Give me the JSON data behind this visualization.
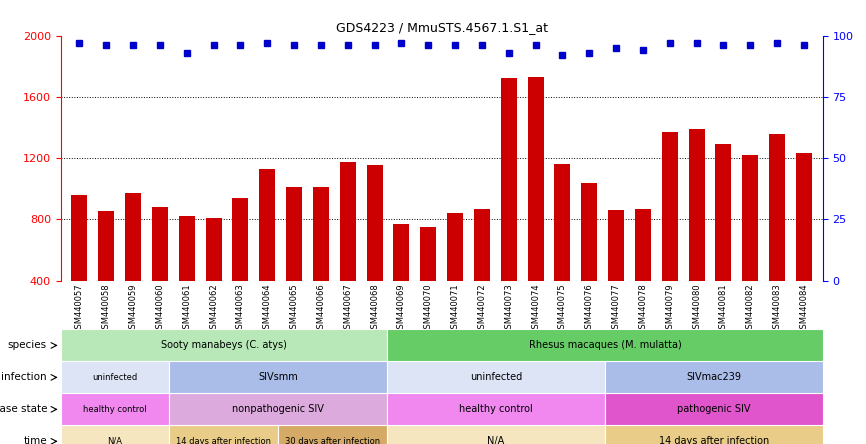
{
  "title": "GDS4223 / MmuSTS.4567.1.S1_at",
  "samples": [
    "GSM440057",
    "GSM440058",
    "GSM440059",
    "GSM440060",
    "GSM440061",
    "GSM440062",
    "GSM440063",
    "GSM440064",
    "GSM440065",
    "GSM440066",
    "GSM440067",
    "GSM440068",
    "GSM440069",
    "GSM440070",
    "GSM440071",
    "GSM440072",
    "GSM440073",
    "GSM440074",
    "GSM440075",
    "GSM440076",
    "GSM440077",
    "GSM440078",
    "GSM440079",
    "GSM440080",
    "GSM440081",
    "GSM440082",
    "GSM440083",
    "GSM440084"
  ],
  "counts": [
    960,
    855,
    975,
    880,
    820,
    810,
    940,
    1130,
    1010,
    1010,
    1175,
    1155,
    770,
    750,
    840,
    870,
    1720,
    1730,
    1160,
    1040,
    860,
    870,
    1370,
    1390,
    1290,
    1220,
    1360,
    1230
  ],
  "percentiles": [
    97,
    96,
    96,
    96,
    93,
    96,
    96,
    97,
    96,
    96,
    96,
    96,
    97,
    96,
    96,
    96,
    93,
    96,
    92,
    93,
    95,
    94,
    97,
    97,
    96,
    96,
    97,
    96
  ],
  "bar_color": "#cc0000",
  "dot_color": "#0000cc",
  "ylim_left": [
    400,
    2000
  ],
  "ylim_right": [
    0,
    100
  ],
  "yticks_left": [
    400,
    800,
    1200,
    1600,
    2000
  ],
  "yticks_right": [
    0,
    25,
    50,
    75,
    100
  ],
  "hlines": [
    800,
    1200,
    1600
  ],
  "species_regions": [
    {
      "label": "Sooty manabeys (C. atys)",
      "start": 0,
      "end": 12,
      "color": "#b8e8b8"
    },
    {
      "label": "Rhesus macaques (M. mulatta)",
      "start": 12,
      "end": 28,
      "color": "#66cc66"
    }
  ],
  "infection_regions": [
    {
      "label": "uninfected",
      "start": 0,
      "end": 4,
      "color": "#dde4f5"
    },
    {
      "label": "SIVsmm",
      "start": 4,
      "end": 12,
      "color": "#aabce8"
    },
    {
      "label": "uninfected",
      "start": 12,
      "end": 20,
      "color": "#dde4f5"
    },
    {
      "label": "SIVmac239",
      "start": 20,
      "end": 28,
      "color": "#aabce8"
    }
  ],
  "disease_regions": [
    {
      "label": "healthy control",
      "start": 0,
      "end": 4,
      "color": "#f088f0"
    },
    {
      "label": "nonpathogenic SIV",
      "start": 4,
      "end": 12,
      "color": "#ddaadd"
    },
    {
      "label": "healthy control",
      "start": 12,
      "end": 20,
      "color": "#f088f0"
    },
    {
      "label": "pathogenic SIV",
      "start": 20,
      "end": 28,
      "color": "#e055cc"
    }
  ],
  "time_regions": [
    {
      "label": "N/A",
      "start": 0,
      "end": 4,
      "color": "#f5e6c0"
    },
    {
      "label": "14 days after infection",
      "start": 4,
      "end": 8,
      "color": "#e8cc88"
    },
    {
      "label": "30 days after infection",
      "start": 8,
      "end": 12,
      "color": "#d4aa66"
    },
    {
      "label": "N/A",
      "start": 12,
      "end": 20,
      "color": "#f5e6c0"
    },
    {
      "label": "14 days after infection",
      "start": 20,
      "end": 28,
      "color": "#e8cc88"
    }
  ],
  "row_labels": [
    "species",
    "infection",
    "disease state",
    "time"
  ],
  "tick_bg_color": "#cccccc"
}
